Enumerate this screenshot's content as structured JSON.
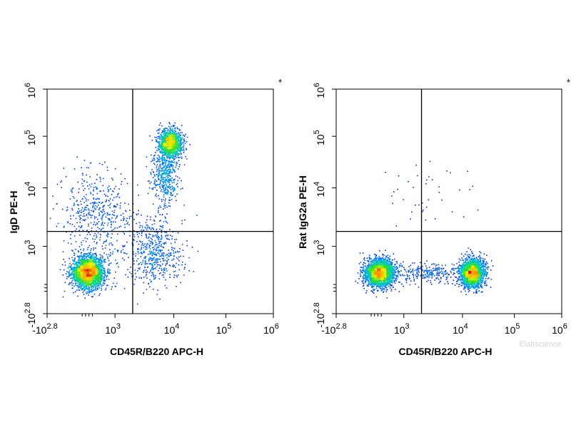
{
  "chart_data": [
    {
      "type": "scatter",
      "subtype": "flow-cytometry-density-dot-plot",
      "xlabel": "CD45R/B220 APC-H",
      "ylabel": "IgD PE-H",
      "corner_mark": "*",
      "x_ticks": [
        {
          "base": "-10",
          "exp": "2.8",
          "value": -631
        },
        {
          "base": "10",
          "exp": "3",
          "value": 1000
        },
        {
          "base": "10",
          "exp": "4",
          "value": 10000
        },
        {
          "base": "10",
          "exp": "5",
          "value": 100000
        },
        {
          "base": "10",
          "exp": "6",
          "value": 1000000
        }
      ],
      "y_ticks": [
        {
          "base": "-10",
          "exp": "2.8",
          "value": -631
        },
        {
          "base": "10",
          "exp": "3",
          "value": 1000
        },
        {
          "base": "10",
          "exp": "4",
          "value": 10000
        },
        {
          "base": "10",
          "exp": "5",
          "value": 100000
        },
        {
          "base": "10",
          "exp": "6",
          "value": 1000000
        }
      ],
      "axis_scale": "biexponential",
      "xlim": [
        -631,
        1000000
      ],
      "ylim": [
        -631,
        1000000
      ],
      "gate_x": 2000,
      "gate_y": 1800,
      "populations": [
        {
          "x": 450,
          "y": 480,
          "sx": 0.16,
          "sy": 0.16,
          "n": 2600
        },
        {
          "x": 8500,
          "y": 75000,
          "sx": 0.12,
          "sy": 0.14,
          "n": 1300
        },
        {
          "x": 7000,
          "y": 18000,
          "sx": 0.13,
          "sy": 0.26,
          "n": 450
        },
        {
          "x": 4500,
          "y": 900,
          "sx": 0.3,
          "sy": 0.35,
          "n": 550
        },
        {
          "x": 600,
          "y": 3500,
          "sx": 0.35,
          "sy": 0.45,
          "n": 500
        }
      ]
    },
    {
      "type": "scatter",
      "subtype": "flow-cytometry-density-dot-plot",
      "xlabel": "CD45R/B220 APC-H",
      "ylabel": "Rat IgG2a PE-H",
      "corner_mark": "*",
      "watermark": "Elabscience",
      "x_ticks": [
        {
          "base": "-10",
          "exp": "2.8",
          "value": -631
        },
        {
          "base": "10",
          "exp": "3",
          "value": 1000
        },
        {
          "base": "10",
          "exp": "4",
          "value": 10000
        },
        {
          "base": "10",
          "exp": "5",
          "value": 100000
        },
        {
          "base": "10",
          "exp": "6",
          "value": 1000000
        }
      ],
      "y_ticks": [
        {
          "base": "-10",
          "exp": "2.8",
          "value": -631
        },
        {
          "base": "10",
          "exp": "3",
          "value": 1000
        },
        {
          "base": "10",
          "exp": "4",
          "value": 10000
        },
        {
          "base": "10",
          "exp": "5",
          "value": 100000
        },
        {
          "base": "10",
          "exp": "6",
          "value": 1000000
        }
      ],
      "axis_scale": "biexponential",
      "xlim": [
        -631,
        1000000
      ],
      "ylim": [
        -631,
        1000000
      ],
      "gate_x": 2000,
      "gate_y": 1800,
      "populations": [
        {
          "x": 500,
          "y": 470,
          "sx": 0.15,
          "sy": 0.14,
          "n": 2400
        },
        {
          "x": 15000,
          "y": 470,
          "sx": 0.12,
          "sy": 0.14,
          "n": 2100
        },
        {
          "x": 2500,
          "y": 470,
          "sx": 0.35,
          "sy": 0.1,
          "n": 250
        },
        {
          "x": 3000,
          "y": 8000,
          "sx": 0.55,
          "sy": 0.45,
          "n": 40
        }
      ]
    }
  ]
}
